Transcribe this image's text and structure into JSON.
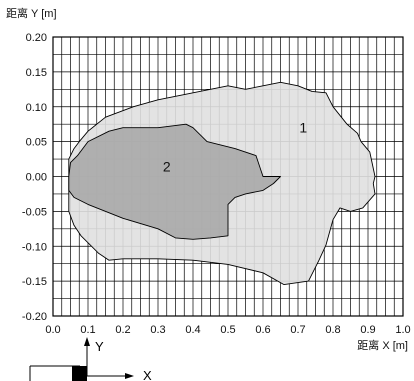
{
  "chart_data": {
    "type": "area",
    "title": "",
    "xlabel": "距离 X [m]",
    "ylabel": "距离 Y [m]",
    "xlim": [
      0.0,
      1.0
    ],
    "ylim": [
      -0.2,
      0.2
    ],
    "grid": true,
    "x_ticks": [
      "0.0",
      "0.1",
      "0.2",
      "0.3",
      "0.4",
      "0.5",
      "0.6",
      "0.7",
      "0.8",
      "0.9",
      "1.0"
    ],
    "y_ticks": [
      "0.20",
      "0.15",
      "0.10",
      "0.05",
      "0.00",
      "-0.05",
      "-0.10",
      "-0.15",
      "-0.20"
    ],
    "regions": [
      {
        "name": "1",
        "color": "#e0e0e0",
        "points": [
          [
            0.045,
            0.0
          ],
          [
            0.045,
            0.025
          ],
          [
            0.06,
            0.04
          ],
          [
            0.075,
            0.05
          ],
          [
            0.1,
            0.065
          ],
          [
            0.15,
            0.085
          ],
          [
            0.23,
            0.1
          ],
          [
            0.3,
            0.11
          ],
          [
            0.4,
            0.12
          ],
          [
            0.5,
            0.13
          ],
          [
            0.55,
            0.125
          ],
          [
            0.6,
            0.13
          ],
          [
            0.65,
            0.135
          ],
          [
            0.7,
            0.13
          ],
          [
            0.74,
            0.122
          ],
          [
            0.78,
            0.12
          ],
          [
            0.8,
            0.1
          ],
          [
            0.84,
            0.075
          ],
          [
            0.87,
            0.062
          ],
          [
            0.88,
            0.05
          ],
          [
            0.905,
            0.035
          ],
          [
            0.92,
            0.0
          ],
          [
            0.915,
            -0.01
          ],
          [
            0.92,
            -0.025
          ],
          [
            0.885,
            -0.045
          ],
          [
            0.85,
            -0.05
          ],
          [
            0.82,
            -0.045
          ],
          [
            0.8,
            -0.062
          ],
          [
            0.78,
            -0.098
          ],
          [
            0.76,
            -0.12
          ],
          [
            0.73,
            -0.15
          ],
          [
            0.66,
            -0.155
          ],
          [
            0.6,
            -0.138
          ],
          [
            0.5,
            -0.126
          ],
          [
            0.4,
            -0.12
          ],
          [
            0.3,
            -0.118
          ],
          [
            0.2,
            -0.118
          ],
          [
            0.16,
            -0.12
          ],
          [
            0.13,
            -0.11
          ],
          [
            0.08,
            -0.085
          ],
          [
            0.06,
            -0.07
          ],
          [
            0.045,
            -0.05
          ]
        ]
      },
      {
        "name": "2",
        "color": "#a9a9a9",
        "points": [
          [
            0.045,
            0.0
          ],
          [
            0.05,
            0.02
          ],
          [
            0.07,
            0.03
          ],
          [
            0.1,
            0.05
          ],
          [
            0.16,
            0.065
          ],
          [
            0.2,
            0.07
          ],
          [
            0.23,
            0.07
          ],
          [
            0.3,
            0.07
          ],
          [
            0.38,
            0.075
          ],
          [
            0.4,
            0.07
          ],
          [
            0.44,
            0.05
          ],
          [
            0.48,
            0.045
          ],
          [
            0.52,
            0.04
          ],
          [
            0.58,
            0.03
          ],
          [
            0.6,
            0.0
          ],
          [
            0.63,
            0.0
          ],
          [
            0.65,
            0.0
          ],
          [
            0.63,
            -0.01
          ],
          [
            0.6,
            -0.02
          ],
          [
            0.55,
            -0.025
          ],
          [
            0.52,
            -0.03
          ],
          [
            0.5,
            -0.04
          ],
          [
            0.5,
            -0.085
          ],
          [
            0.45,
            -0.088
          ],
          [
            0.4,
            -0.09
          ],
          [
            0.35,
            -0.088
          ],
          [
            0.3,
            -0.075
          ],
          [
            0.2,
            -0.06
          ],
          [
            0.1,
            -0.04
          ],
          [
            0.06,
            -0.03
          ],
          [
            0.045,
            -0.02
          ]
        ]
      }
    ],
    "labels": [
      {
        "text": "1",
        "x": 0.715,
        "y": 0.07
      },
      {
        "text": "2",
        "x": 0.325,
        "y": 0.014
      }
    ]
  },
  "coordinate_legend": {
    "y_label": "Y",
    "x_label": "X"
  }
}
